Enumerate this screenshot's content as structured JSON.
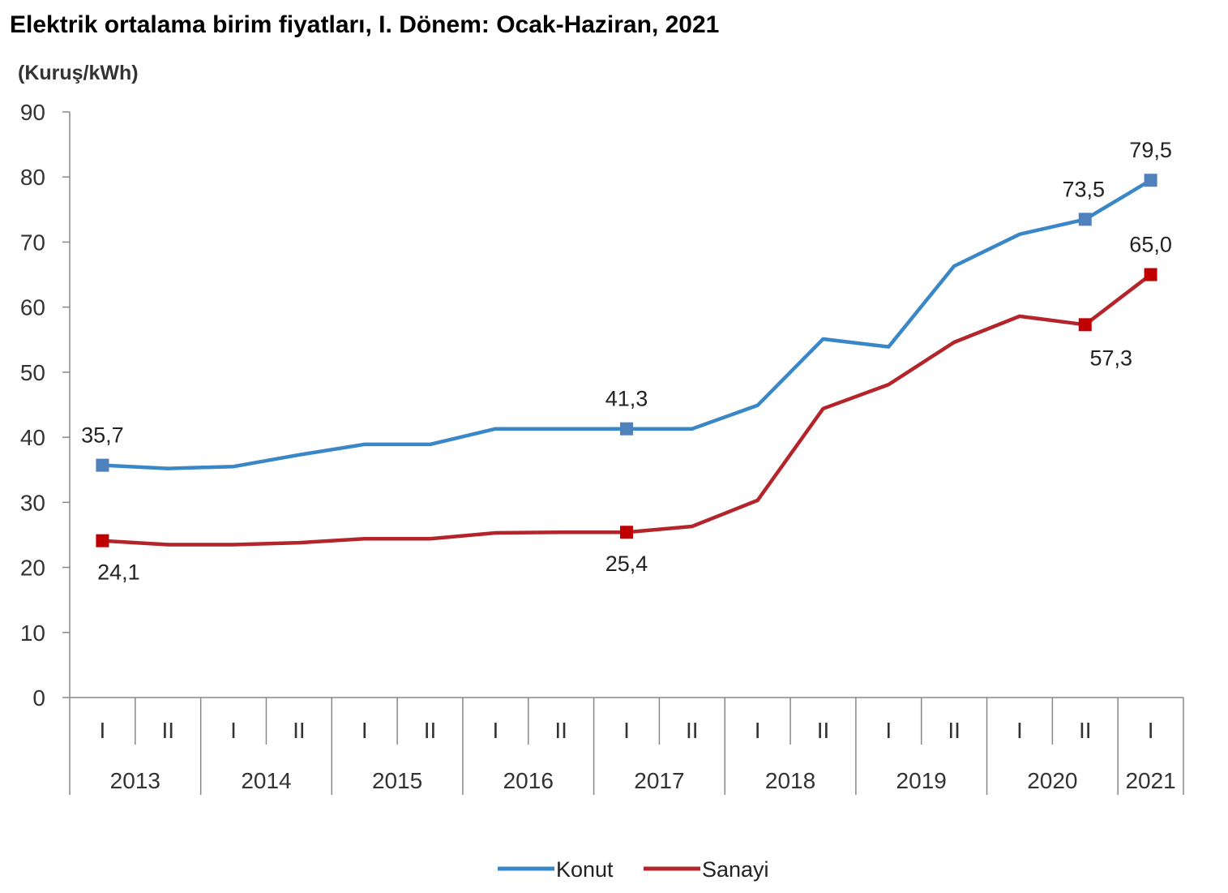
{
  "chart_data": {
    "type": "line",
    "title": "Elektrik ortalama birim fiyatları, I. Dönem: Ocak-Haziran, 2021",
    "ylabel": "(Kuruş/kWh)",
    "ylim": [
      0,
      90
    ],
    "yticks": [
      0,
      10,
      20,
      30,
      40,
      50,
      60,
      70,
      80,
      90
    ],
    "period_labels": [
      "I",
      "II",
      "I",
      "II",
      "I",
      "II",
      "I",
      "II",
      "I",
      "II",
      "I",
      "II",
      "I",
      "II",
      "I",
      "II",
      "I"
    ],
    "year_labels": [
      "2013",
      "2014",
      "2015",
      "2016",
      "2017",
      "2018",
      "2019",
      "2020",
      "2021"
    ],
    "legend_position": "bottom-center",
    "series": [
      {
        "name": "Konut",
        "color": "#3a87c8",
        "marker_color": "#4f81bd",
        "values": [
          35.7,
          35.2,
          35.5,
          37.3,
          38.9,
          38.9,
          41.3,
          41.3,
          41.3,
          41.3,
          44.9,
          55.1,
          53.9,
          66.3,
          71.2,
          73.5,
          79.5
        ],
        "labels": [
          {
            "index": 0,
            "text": "35,7",
            "pos": "above"
          },
          {
            "index": 8,
            "text": "41,3",
            "pos": "above"
          },
          {
            "index": 15,
            "text": "73,5",
            "pos": "above"
          },
          {
            "index": 16,
            "text": "79,5",
            "pos": "above"
          }
        ]
      },
      {
        "name": "Sanayi",
        "color": "#b3252a",
        "marker_color": "#c00000",
        "values": [
          24.1,
          23.5,
          23.5,
          23.8,
          24.4,
          24.4,
          25.3,
          25.4,
          25.4,
          26.3,
          30.3,
          44.4,
          48.1,
          54.6,
          58.6,
          57.3,
          65.0
        ],
        "labels": [
          {
            "index": 0,
            "text": "24,1",
            "pos": "below"
          },
          {
            "index": 8,
            "text": "25,4",
            "pos": "below"
          },
          {
            "index": 15,
            "text": "57,3",
            "pos": "below-left"
          },
          {
            "index": 16,
            "text": "65,0",
            "pos": "above"
          }
        ]
      }
    ],
    "markers_at": [
      0,
      8,
      15,
      16
    ]
  }
}
